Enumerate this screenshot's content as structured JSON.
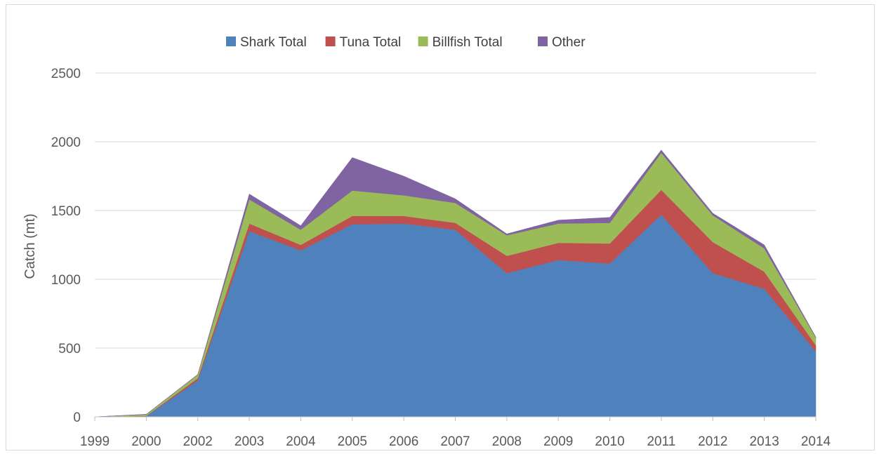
{
  "chart_data": {
    "type": "area",
    "stacked": true,
    "title": "",
    "xlabel": "",
    "ylabel": "Catch (mt)",
    "ylim": [
      0,
      2500
    ],
    "yticks": [
      0,
      500,
      1000,
      1500,
      2000,
      2500
    ],
    "grid": true,
    "legend_position": "top",
    "categories": [
      "1999",
      "2000",
      "2002",
      "2003",
      "2004",
      "2005",
      "2006",
      "2007",
      "2008",
      "2009",
      "2010",
      "2011",
      "2012",
      "2013",
      "2014"
    ],
    "series": [
      {
        "name": "Shark Total",
        "color": "#4f81bd",
        "values": [
          0,
          5,
          265,
          1350,
          1210,
          1400,
          1405,
          1360,
          1045,
          1140,
          1115,
          1470,
          1045,
          930,
          475
        ]
      },
      {
        "name": "Tuna Total",
        "color": "#c0504d",
        "values": [
          0,
          2,
          15,
          55,
          40,
          60,
          55,
          50,
          125,
          125,
          145,
          180,
          225,
          125,
          45
        ]
      },
      {
        "name": "Billfish Total",
        "color": "#9bbb59",
        "values": [
          0,
          10,
          25,
          175,
          110,
          185,
          150,
          145,
          150,
          140,
          150,
          270,
          195,
          170,
          55
        ]
      },
      {
        "name": "Other",
        "color": "#8064a2",
        "values": [
          0,
          2,
          3,
          40,
          30,
          240,
          140,
          30,
          10,
          25,
          40,
          20,
          15,
          25,
          5
        ]
      }
    ]
  }
}
